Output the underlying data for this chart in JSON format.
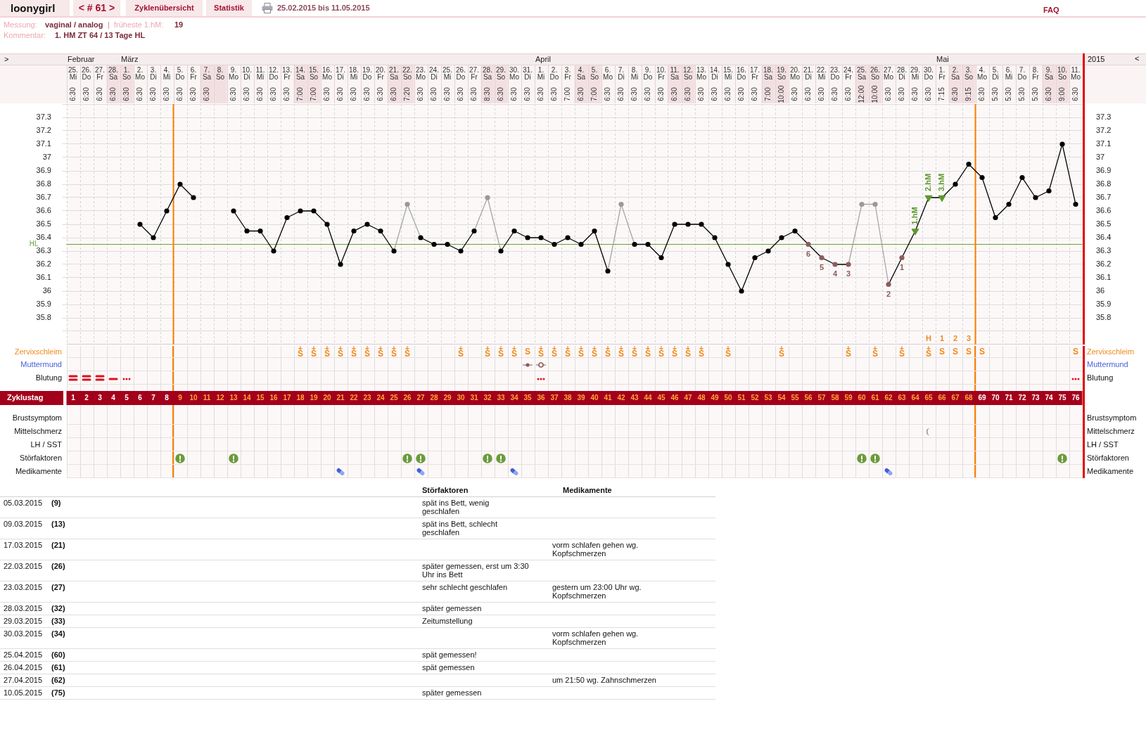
{
  "chart_data": [
    {
      "type": "line",
      "xlim": [
        0.5,
        76.5
      ],
      "xticks": [
        1,
        2,
        3,
        4,
        5,
        6,
        7,
        8,
        9,
        10,
        11,
        12,
        13,
        14,
        15,
        16,
        17,
        18,
        19,
        20,
        21,
        22,
        23,
        24,
        25,
        26,
        27,
        28,
        29,
        30,
        31,
        32,
        33,
        34,
        35,
        36,
        37,
        38,
        39,
        40,
        41,
        42,
        43,
        44,
        45,
        46,
        47,
        48,
        49,
        50,
        51,
        52,
        53,
        54,
        55,
        56,
        57,
        58,
        59,
        60,
        61,
        62,
        63,
        64,
        65,
        66,
        67,
        68,
        69,
        70,
        71,
        72,
        73,
        74,
        75,
        76
      ],
      "xlabel": "Zyklustag",
      "x2lim": [
        "2015-02-24T12:00",
        "2015-05-11T12:00"
      ],
      "x2ticks": [
        {
          "value": "2015-02-25",
          "label": "25.\nMi\n6:30"
        },
        {
          "value": "2015-02-26",
          "label": "26.\nDo\n6:30"
        },
        {
          "value": "2015-02-27",
          "label": "27.\nFr\n6:30"
        },
        {
          "value": "2015-02-28",
          "label": "28.\nSa\n6:30"
        },
        {
          "value": "2015-03-01",
          "label": "1.\nSo\n6:30"
        },
        {
          "value": "2015-03-02",
          "label": "2.\nMo\n6:30"
        },
        {
          "value": "2015-03-03",
          "label": "3.\nDi\n6:30"
        },
        {
          "value": "2015-03-04",
          "label": "4.\nMi\n6:30"
        },
        {
          "value": "2015-03-05",
          "label": "5.\nDo\n6:30"
        },
        {
          "value": "2015-03-06",
          "label": "6.\nFr\n6:30"
        },
        {
          "value": "2015-03-07",
          "label": "7.\nSa\n6:30"
        },
        {
          "value": "2015-03-08",
          "label": "8.\nSo"
        },
        {
          "value": "2015-03-09",
          "label": "9.\nMo\n6:30"
        },
        {
          "value": "2015-03-10",
          "label": "10.\nDi\n6:30"
        },
        {
          "value": "2015-03-11",
          "label": "11.\nMi\n6:30"
        },
        {
          "value": "2015-03-12",
          "label": "12.\nDo\n6:30"
        },
        {
          "value": "2015-03-13",
          "label": "13.\nFr\n6:30"
        },
        {
          "value": "2015-03-14",
          "label": "14.\nSa\n7:00"
        },
        {
          "value": "2015-03-15",
          "label": "15.\nSo\n7:00"
        },
        {
          "value": "2015-03-16",
          "label": "16.\nMo\n6:30"
        },
        {
          "value": "2015-03-17",
          "label": "17.\nDi\n6:30"
        },
        {
          "value": "2015-03-18",
          "label": "18.\nMi\n6:30"
        },
        {
          "value": "2015-03-19",
          "label": "19.\nDo\n6:30"
        },
        {
          "value": "2015-03-20",
          "label": "20.\nFr\n6:30"
        },
        {
          "value": "2015-03-21",
          "label": "21.\nSa\n6:30"
        },
        {
          "value": "2015-03-22",
          "label": "22.\nSo\n7:20"
        },
        {
          "value": "2015-03-23",
          "label": "23.\nMo\n6:30"
        },
        {
          "value": "2015-03-24",
          "label": "24.\nDi\n6:30"
        },
        {
          "value": "2015-03-25",
          "label": "25.\nMi\n6:30"
        },
        {
          "value": "2015-03-26",
          "label": "26.\nDo\n6:30"
        },
        {
          "value": "2015-03-27",
          "label": "27.\nFr\n6:30"
        },
        {
          "value": "2015-03-28",
          "label": "28.\nSa\n8:30"
        },
        {
          "value": "2015-03-29",
          "label": "29.\nSo\n6:30"
        },
        {
          "value": "2015-03-30",
          "label": "30.\nMo\n6:30"
        },
        {
          "value": "2015-03-31",
          "label": "31.\nDi\n6:30"
        },
        {
          "value": "2015-04-01",
          "label": "1.\nMi\n6:30"
        },
        {
          "value": "2015-04-02",
          "label": "2.\nDo\n6:30"
        },
        {
          "value": "2015-04-03",
          "label": "3.\nFr\n7:00"
        },
        {
          "value": "2015-04-04",
          "label": "4.\nSa\n6:30"
        },
        {
          "value": "2015-04-05",
          "label": "5.\nSo\n7:00"
        },
        {
          "value": "2015-04-06",
          "label": "6.\nMo\n6:30"
        },
        {
          "value": "2015-04-07",
          "label": "7.\nDi\n6:30"
        },
        {
          "value": "2015-04-08",
          "label": "8.\nMi\n6:30"
        },
        {
          "value": "2015-04-09",
          "label": "9.\nDo\n6:30"
        },
        {
          "value": "2015-04-10",
          "label": "10.\nFr\n6:30"
        },
        {
          "value": "2015-04-11",
          "label": "11.\nSa\n6:30"
        },
        {
          "value": "2015-04-12",
          "label": "12.\nSo\n6:30"
        },
        {
          "value": "2015-04-13",
          "label": "13.\nMo\n6:30"
        },
        {
          "value": "2015-04-14",
          "label": "14.\nDi\n6:30"
        },
        {
          "value": "2015-04-15",
          "label": "15.\nMi\n6:30"
        },
        {
          "value": "2015-04-16",
          "label": "16.\nDo\n6:30"
        },
        {
          "value": "2015-04-17",
          "label": "17.\nFr\n6:30"
        },
        {
          "value": "2015-04-18",
          "label": "18.\nSa\n7:00"
        },
        {
          "value": "2015-04-19",
          "label": "19.\nSo\n10:00"
        },
        {
          "value": "2015-04-20",
          "label": "20.\nMo\n6:30"
        },
        {
          "value": "2015-04-21",
          "label": "21.\nDi\n6:30"
        },
        {
          "value": "2015-04-22",
          "label": "22.\nMi\n6:30"
        },
        {
          "value": "2015-04-23",
          "label": "23.\nDo\n6:30"
        },
        {
          "value": "2015-04-24",
          "label": "24.\nFr\n6:30"
        },
        {
          "value": "2015-04-25",
          "label": "25.\nSa\n12:00"
        },
        {
          "value": "2015-04-26",
          "label": "26.\nSo\n10:00"
        },
        {
          "value": "2015-04-27",
          "label": "27.\nMo\n6:30"
        },
        {
          "value": "2015-04-28",
          "label": "28.\nDi\n6:30"
        },
        {
          "value": "2015-04-29",
          "label": "29.\nMi\n6:30"
        },
        {
          "value": "2015-04-30",
          "label": "30.\nDo\n6:30"
        },
        {
          "value": "2015-05-01",
          "label": "1.\nFr\n7:15"
        },
        {
          "value": "2015-05-02",
          "label": "2.\nSa\n6:30"
        },
        {
          "value": "2015-05-03",
          "label": "3.\nSo\n9:15"
        },
        {
          "value": "2015-05-04",
          "label": "4.\nMo\n6:30"
        },
        {
          "value": "2015-05-05",
          "label": "5.\nDi\n5:30"
        },
        {
          "value": "2015-05-06",
          "label": "6.\nMi\n5:30"
        },
        {
          "value": "2015-05-07",
          "label": "7.\nDo\n5:30"
        },
        {
          "value": "2015-05-08",
          "label": "8.\nFr\n5:30"
        },
        {
          "value": "2015-05-09",
          "label": "9.\nSa\n6:30"
        },
        {
          "value": "2015-05-10",
          "label": "10.\nSo\n9:00"
        },
        {
          "value": "2015-05-11",
          "label": "11.\nMo\n6:30"
        }
      ],
      "series": [
        {
          "color": "#000000",
          "marker": "circle",
          "x": [
            6,
            7,
            8,
            9,
            10,
            11,
            12,
            13,
            14,
            15,
            16,
            17,
            18,
            19,
            20,
            21,
            22,
            23,
            24,
            25,
            26,
            27,
            28,
            29,
            30,
            31,
            32,
            33,
            34,
            35,
            36,
            37,
            38,
            39,
            40,
            41,
            42,
            43,
            44,
            45,
            46,
            47,
            48,
            49,
            50,
            51,
            52,
            53,
            54,
            55,
            56,
            57,
            58,
            59,
            60,
            61,
            62,
            63,
            64,
            65,
            66,
            67,
            68,
            69,
            70,
            71,
            72,
            73,
            74,
            75,
            76
          ],
          "values": [
            36.5,
            36.4,
            36.6,
            36.8,
            36.7,
            null,
            null,
            36.6,
            36.45,
            36.45,
            36.3,
            36.55,
            36.6,
            36.6,
            36.5,
            36.2,
            36.45,
            36.5,
            36.45,
            36.3,
            null,
            36.4,
            36.35,
            36.35,
            36.3,
            36.45,
            null,
            36.3,
            36.45,
            36.4,
            36.4,
            36.35,
            36.4,
            36.35,
            36.45,
            36.15,
            null,
            36.35,
            36.35,
            36.25,
            36.5,
            36.5,
            36.5,
            36.4,
            36.2,
            36.0,
            36.25,
            36.3,
            36.4,
            36.45,
            36.35,
            36.25,
            36.2,
            36.2,
            null,
            null,
            36.05,
            36.25,
            36.45,
            36.7,
            36.7,
            36.8,
            36.95,
            36.85,
            36.55,
            36.65,
            36.85,
            36.7,
            36.75,
            37.1,
            36.65
          ],
          "colors": [
            "#000000",
            "#000000",
            "#000000",
            "#000000",
            "#000000",
            null,
            null,
            "#000000",
            "#000000",
            "#000000",
            "#000000",
            "#000000",
            "#000000",
            "#000000",
            "#000000",
            "#000000",
            "#000000",
            "#000000",
            "#000000",
            "#000000",
            null,
            "#000000",
            "#000000",
            "#000000",
            "#000000",
            "#000000",
            null,
            "#000000",
            "#000000",
            "#000000",
            "#000000",
            "#000000",
            "#000000",
            "#000000",
            "#000000",
            "#000000",
            null,
            "#000000",
            "#000000",
            "#000000",
            "#000000",
            "#000000",
            "#000000",
            "#000000",
            "#000000",
            "#000000",
            "#000000",
            "#000000",
            "#000000",
            "#000000",
            "#8c5c5c",
            "#8c5c5c",
            "#8c5c5c",
            "#8c5c5c",
            null,
            null,
            "#8c5c5c",
            "#8c5c5c",
            "#5b9a2c",
            "#5b9a2c",
            "#5b9a2c",
            "#000000",
            "#000000",
            "#000000",
            "#000000",
            "#000000",
            "#000000",
            "#000000",
            "#000000",
            "#000000",
            "#000000"
          ]
        },
        {
          "color": "#a6a6a6",
          "x": [
            25,
            26,
            27,
            28,
            31,
            32,
            33,
            34,
            41,
            42,
            43,
            44,
            59,
            60,
            61,
            62
          ],
          "values": [
            36.3,
            36.65,
            36.4,
            null,
            36.45,
            36.7,
            36.3,
            null,
            36.15,
            36.65,
            36.35,
            null,
            36.2,
            36.65,
            36.65,
            36.05
          ]
        },
        {
          "type": "scatter",
          "color": "#999999",
          "marker": "circle",
          "x": [
            26,
            32,
            42,
            60,
            61
          ],
          "values": [
            36.65,
            36.7,
            36.65,
            36.65,
            36.65
          ]
        },
        {
          "type": "scatter",
          "color": "#5b9a2c",
          "marker": "triangle",
          "x": [
            64,
            65,
            66
          ],
          "values": [
            36.45,
            36.7,
            36.7
          ]
        }
      ],
      "ylim": [
        35.6,
        37.4
      ],
      "yticks": [
        {
          "value": 35.7,
          "label": null
        },
        35.8,
        35.9,
        36,
        36.1,
        36.2,
        36.3,
        36.4,
        36.5,
        36.6,
        36.7,
        36.8,
        36.9,
        37,
        37.1,
        37.2,
        37.3,
        {
          "value": 37.4,
          "label": null
        }
      ],
      "y2lim": [
        35.6,
        37.4
      ],
      "y2ticks": [
        35.8,
        35.9,
        36,
        36.1,
        36.2,
        36.3,
        36.4,
        36.5,
        36.6,
        36.7,
        36.8,
        36.9,
        37,
        37.1,
        37.2,
        37.3
      ],
      "grid": true,
      "ref_lines": [
        {
          "axis": "y",
          "value": 36.35,
          "label": "HL",
          "color": "#6aa33a"
        },
        {
          "axis": "x",
          "value": 8.5,
          "color": "#ff7f00"
        },
        {
          "axis": "x",
          "value": 68.5,
          "color": "#ff7f00"
        }
      ],
      "annotations": [
        "loonygirl",
        "< # 61 >",
        "Zyklenübersicht",
        "Statistik",
        "25.02.2015 bis 11.05.2015",
        "FAQ",
        "Messung:",
        "vaginal / analog",
        "|",
        "früheste 1.hM:",
        "19",
        "Kommentar:",
        "1. HM ZT 64 / 13 Tage HL",
        ">",
        "2015",
        "<",
        "Februar",
        "März",
        "April",
        "Mai",
        {
          "text": "6",
          "x": 56,
          "y": 36.35
        },
        {
          "text": "5",
          "x": 57,
          "y": 36.25
        },
        {
          "text": "4",
          "x": 58,
          "y": 36.2
        },
        {
          "text": "3",
          "x": 59,
          "y": 36.2
        },
        {
          "text": "2",
          "x": 62,
          "y": 36.05
        },
        {
          "text": "1",
          "x": 63,
          "y": 36.25
        },
        {
          "text": "1.hM",
          "x": 64,
          "y": 36.45
        },
        {
          "text": "2.hM",
          "x": 65,
          "y": 36.7
        },
        {
          "text": "3.hM",
          "x": 66,
          "y": 36.7
        }
      ]
    },
    {
      "type": "other",
      "y_categories": [
        null,
        "Zervixschleim",
        "Muttermund",
        "Blutung",
        "Brustsymptom",
        "Mittelschmerz",
        "LH / SST",
        "Störfaktoren",
        "Medikamente"
      ],
      "y2_categories": [
        null,
        "Zervixschleim",
        "Muttermund",
        "Blutung",
        "Brustsymptom",
        "Mittelschmerz",
        "LH / SST",
        "Störfaktoren",
        "Medikamente"
      ],
      "cell_labels": [
        [
          null,
          null,
          null,
          null,
          null,
          null,
          null,
          null,
          null,
          null,
          null,
          null,
          null,
          null,
          null,
          null,
          null,
          null,
          null,
          null,
          null,
          null,
          null,
          null,
          null,
          null,
          null,
          null,
          null,
          null,
          null,
          null,
          null,
          null,
          null,
          null,
          null,
          null,
          null,
          null,
          null,
          null,
          null,
          null,
          null,
          null,
          null,
          null,
          null,
          null,
          null,
          null,
          null,
          null,
          null,
          null,
          null,
          null,
          null,
          null,
          null,
          null,
          null,
          null,
          "H",
          "1",
          "2",
          "3",
          null,
          null,
          null,
          null,
          null,
          null,
          null,
          null
        ],
        [
          null,
          null,
          null,
          null,
          null,
          null,
          null,
          null,
          null,
          null,
          null,
          null,
          null,
          null,
          null,
          null,
          null,
          "S$^{+}$",
          "S$^{+}$",
          "S$^{+}$",
          "S$^{+}$",
          "S$^{+}$",
          "S$^{+}$",
          "S$^{+}$",
          "S$^{+}$",
          "S$^{+}$",
          null,
          null,
          null,
          "S$^{+}$",
          null,
          "S$^{+}$",
          "S$^{+}$",
          "S$^{+}$",
          "S",
          "S$^{+}$",
          "S$^{+}$",
          "S$^{+}$",
          "S$^{+}$",
          "S$^{+}$",
          "S$^{+}$",
          "S$^{+}$",
          "S$^{+}$",
          "S$^{+}$",
          "S$^{+}$",
          "S$^{+}$",
          "S$^{+}$",
          "S$^{+}$",
          null,
          "S$^{+}$",
          null,
          null,
          null,
          "S$^{+}$",
          null,
          null,
          null,
          null,
          "S$^{+}$",
          null,
          "S$^{+}$",
          null,
          "S$^{+}$",
          null,
          "S$^{+}$",
          "S",
          "S",
          "S",
          "S",
          null,
          null,
          null,
          null,
          null,
          null,
          "S"
        ],
        [
          null,
          null,
          null,
          null,
          null,
          null,
          null,
          null,
          null,
          null,
          null,
          null,
          null,
          null,
          null,
          null,
          null,
          null,
          null,
          null,
          null,
          null,
          null,
          null,
          null,
          null,
          null,
          null,
          null,
          null,
          null,
          null,
          null,
          null,
          null,
          null,
          null,
          null,
          null,
          null,
          null,
          null,
          null,
          null,
          null,
          null,
          null,
          null,
          null,
          null,
          null,
          null,
          null,
          null,
          null,
          null,
          null,
          null,
          null,
          null,
          null,
          null,
          null,
          null,
          null,
          null,
          null,
          null,
          null,
          null,
          null,
          null,
          null,
          null,
          null,
          null
        ],
        [
          null,
          null,
          null,
          null,
          null,
          null,
          null,
          null,
          null,
          null,
          null,
          null,
          null,
          null,
          null,
          null,
          null,
          null,
          null,
          null,
          null,
          null,
          null,
          null,
          null,
          null,
          null,
          null,
          null,
          null,
          null,
          null,
          null,
          null,
          null,
          null,
          null,
          null,
          null,
          null,
          null,
          null,
          null,
          null,
          null,
          null,
          null,
          null,
          null,
          null,
          null,
          null,
          null,
          null,
          null,
          null,
          null,
          null,
          null,
          null,
          null,
          null,
          null,
          null,
          null,
          null,
          null,
          null,
          null,
          null,
          null,
          null,
          null,
          null,
          null,
          null
        ],
        [
          null,
          null,
          null,
          null,
          null,
          null,
          null,
          null,
          null,
          null,
          null,
          null,
          null,
          null,
          null,
          null,
          null,
          null,
          null,
          null,
          null,
          null,
          null,
          null,
          null,
          null,
          null,
          null,
          null,
          null,
          null,
          null,
          null,
          null,
          null,
          null,
          null,
          null,
          null,
          null,
          null,
          null,
          null,
          null,
          null,
          null,
          null,
          null,
          null,
          null,
          null,
          null,
          null,
          null,
          null,
          null,
          null,
          null,
          null,
          null,
          null,
          null,
          null,
          null,
          null,
          null,
          null,
          null,
          null,
          null,
          null,
          null,
          null,
          null,
          null,
          null
        ],
        [
          null,
          null,
          null,
          null,
          null,
          null,
          null,
          null,
          null,
          null,
          null,
          null,
          null,
          null,
          null,
          null,
          null,
          null,
          null,
          null,
          null,
          null,
          null,
          null,
          null,
          null,
          null,
          null,
          null,
          null,
          null,
          null,
          null,
          null,
          null,
          null,
          null,
          null,
          null,
          null,
          null,
          null,
          null,
          null,
          null,
          null,
          null,
          null,
          null,
          null,
          null,
          null,
          null,
          null,
          null,
          null,
          null,
          null,
          null,
          null,
          null,
          null,
          null,
          null,
          null,
          null,
          null,
          null,
          null,
          null,
          null,
          null,
          null,
          null,
          null,
          null
        ],
        [
          null,
          null,
          null,
          null,
          null,
          null,
          null,
          null,
          null,
          null,
          null,
          null,
          null,
          null,
          null,
          null,
          null,
          null,
          null,
          null,
          null,
          null,
          null,
          null,
          null,
          null,
          null,
          null,
          null,
          null,
          null,
          null,
          null,
          null,
          null,
          null,
          null,
          null,
          null,
          null,
          null,
          null,
          null,
          null,
          null,
          null,
          null,
          null,
          null,
          null,
          null,
          null,
          null,
          null,
          null,
          null,
          null,
          null,
          null,
          null,
          null,
          null,
          null,
          null,
          null,
          null,
          null,
          null,
          null,
          null,
          null,
          null,
          null,
          null,
          null,
          null
        ],
        [
          null,
          null,
          null,
          null,
          null,
          null,
          null,
          null,
          null,
          null,
          null,
          null,
          null,
          null,
          null,
          null,
          null,
          null,
          null,
          null,
          null,
          null,
          null,
          null,
          null,
          null,
          null,
          null,
          null,
          null,
          null,
          null,
          null,
          null,
          null,
          null,
          null,
          null,
          null,
          null,
          null,
          null,
          null,
          null,
          null,
          null,
          null,
          null,
          null,
          null,
          null,
          null,
          null,
          null,
          null,
          null,
          null,
          null,
          null,
          null,
          null,
          null,
          null,
          null,
          null,
          null,
          null,
          null,
          null,
          null,
          null,
          null,
          null,
          null,
          null,
          null
        ],
        [
          null,
          null,
          null,
          null,
          null,
          null,
          null,
          null,
          null,
          null,
          null,
          null,
          null,
          null,
          null,
          null,
          null,
          null,
          null,
          null,
          null,
          null,
          null,
          null,
          null,
          null,
          null,
          null,
          null,
          null,
          null,
          null,
          null,
          null,
          null,
          null,
          null,
          null,
          null,
          null,
          null,
          null,
          null,
          null,
          null,
          null,
          null,
          null,
          null,
          null,
          null,
          null,
          null,
          null,
          null,
          null,
          null,
          null,
          null,
          null,
          null,
          null,
          null,
          null,
          null,
          null,
          null,
          null,
          null,
          null,
          null,
          null,
          null,
          null,
          null,
          null
        ]
      ]
    },
    {
      "type": "other",
      "categories": [
        null,
        null,
        "Störfaktoren",
        "Medikamente"
      ],
      "cell_labels": [
        [
          "05.03.2015",
          "(9)",
          "spät ins Bett, wenig\ngeschlafen",
          null
        ],
        [
          "09.03.2015",
          "(13)",
          "spät ins Bett, schlecht\ngeschlafen",
          null
        ],
        [
          "17.03.2015",
          "(21)",
          null,
          "vorm schlafen gehen wg.\nKopfschmerzen"
        ],
        [
          "22.03.2015",
          "(26)",
          "später gemessen, erst um 3:30\nUhr ins Bett",
          null
        ],
        [
          "23.03.2015",
          "(27)",
          "sehr schlecht geschlafen",
          "gestern um 23:00 Uhr wg.\nKopfschmerzen"
        ],
        [
          "28.03.2015",
          "(32)",
          "später gemessen",
          null
        ],
        [
          "29.03.2015",
          "(33)",
          "Zeitumstellung",
          null
        ],
        [
          "30.03.2015",
          "(34)",
          null,
          "vorm schlafen gehen wg.\nKopfschmerzen"
        ],
        [
          "25.04.2015",
          "(60)",
          "spät gemessen!",
          null
        ],
        [
          "26.04.2015",
          "(61)",
          "spät gemessen",
          null
        ],
        [
          "27.04.2015",
          "(62)",
          null,
          "um 21:50 wg. Zahnschmerzen"
        ],
        [
          "10.05.2015",
          "(75)",
          "später gemessen",
          null
        ]
      ]
    }
  ]
}
